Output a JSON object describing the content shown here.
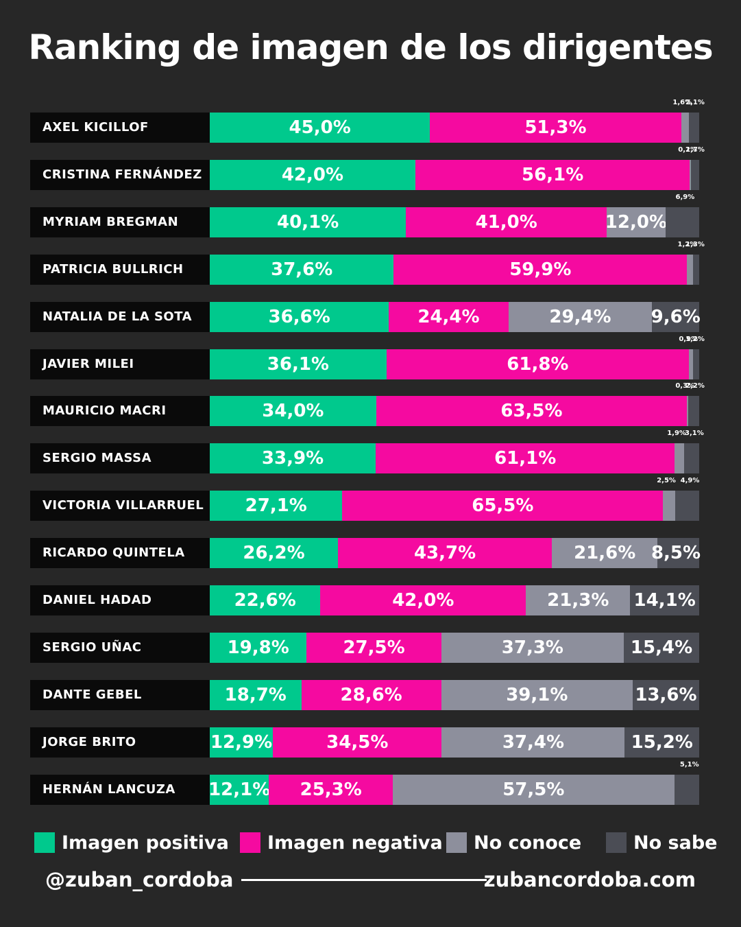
{
  "chart_data": {
    "type": "bar",
    "orientation": "horizontal",
    "stacked": true,
    "title": "Ranking de imagen de los dirigentes",
    "categories": [
      "AXEL KICILLOF",
      "CRISTINA FERNÁNDEZ",
      "MYRIAM BREGMAN",
      "PATRICIA BULLRICH",
      "NATALIA DE LA SOTA",
      "JAVIER MILEI",
      "MAURICIO MACRI",
      "SERGIO MASSA",
      "VICTORIA VILLARRUEL",
      "RICARDO QUINTELA",
      "DANIEL HADAD",
      "SERGIO UÑAC",
      "DANTE GEBEL",
      "JORGE BRITO",
      "HERNÁN LANCUZA"
    ],
    "series": [
      {
        "name": "Imagen positiva",
        "color": "#00c98d",
        "values": [
          45.0,
          42.0,
          40.1,
          37.6,
          36.6,
          36.1,
          34.0,
          33.9,
          27.1,
          26.2,
          22.6,
          19.8,
          18.7,
          12.9,
          12.1
        ]
      },
      {
        "name": "Imagen negativa",
        "color": "#f50aa0",
        "values": [
          51.3,
          56.1,
          41.0,
          59.9,
          24.4,
          61.8,
          63.5,
          61.1,
          65.5,
          43.7,
          42.0,
          27.5,
          28.6,
          34.5,
          25.3
        ]
      },
      {
        "name": "No conoce",
        "color": "#8d8f9c",
        "values": [
          1.6,
          0.2,
          12.0,
          1.2,
          29.4,
          0.9,
          0.3,
          1.9,
          2.5,
          21.6,
          21.3,
          37.3,
          39.1,
          37.4,
          57.5
        ]
      },
      {
        "name": "No sabe",
        "color": "#4b4d55",
        "values": [
          2.1,
          1.7,
          6.9,
          1.3,
          9.6,
          1.2,
          2.2,
          3.1,
          4.9,
          8.5,
          14.1,
          15.4,
          13.6,
          15.2,
          5.1
        ]
      }
    ],
    "labels": [
      [
        "45,0%",
        "51,3%",
        "1,6%",
        "2,1%"
      ],
      [
        "42,0%",
        "56,1%",
        "0,2%",
        "1,7%"
      ],
      [
        "40,1%",
        "41,0%",
        "12,0%",
        "6,9%"
      ],
      [
        "37,6%",
        "59,9%",
        "1,2%",
        "1,3%"
      ],
      [
        "36,6%",
        "24,4%",
        "29,4%",
        "9,6%"
      ],
      [
        "36,1%",
        "61,8%",
        "0,9%",
        "1,2%"
      ],
      [
        "34,0%",
        "63,5%",
        "0,3%",
        "2,2%"
      ],
      [
        "33,9%",
        "61,1%",
        "1,9%",
        "3,1%"
      ],
      [
        "27,1%",
        "65,5%",
        "2,5%",
        "4,9%"
      ],
      [
        "26,2%",
        "43,7%",
        "21,6%",
        "8,5%"
      ],
      [
        "22,6%",
        "42,0%",
        "21,3%",
        "14,1%"
      ],
      [
        "19,8%",
        "27,5%",
        "37,3%",
        "15,4%"
      ],
      [
        "18,7%",
        "28,6%",
        "39,1%",
        "13,6%"
      ],
      [
        "12,9%",
        "34,5%",
        "37,4%",
        "15,2%"
      ],
      [
        "12,1%",
        "25,3%",
        "57,5%",
        "5,1%"
      ]
    ],
    "legend_position": "bottom",
    "grid": false
  },
  "legend": {
    "items": [
      {
        "label": "Imagen positiva",
        "color": "#00c98d"
      },
      {
        "label": "Imagen negativa",
        "color": "#f50aa0"
      },
      {
        "label": "No conoce",
        "color": "#8d8f9c"
      },
      {
        "label": "No sabe",
        "color": "#4b4d55"
      }
    ]
  },
  "footer": {
    "handle": "@zuban_cordoba",
    "site": "zubancordoba.com"
  }
}
